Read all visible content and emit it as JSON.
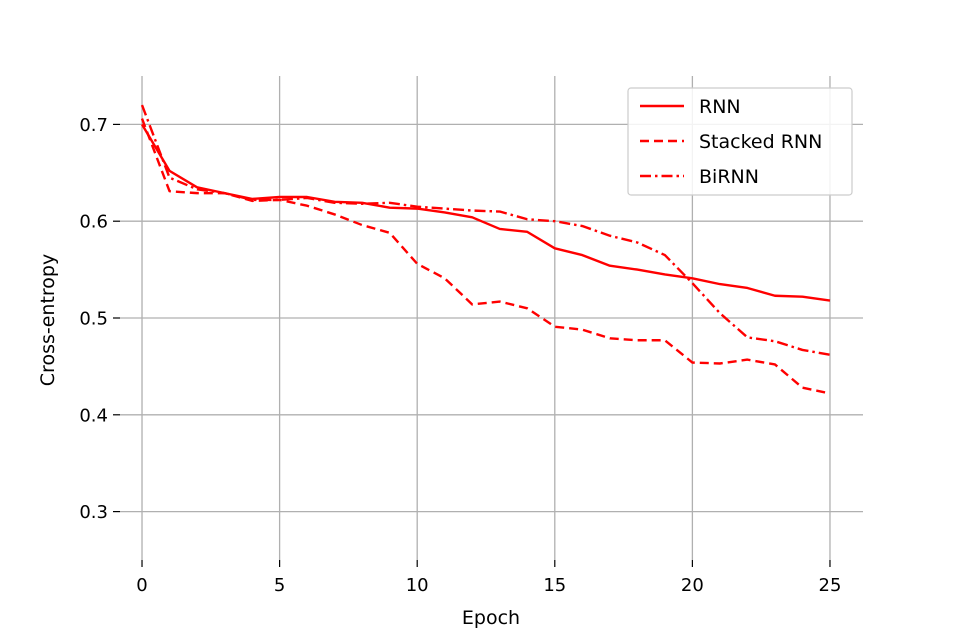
{
  "chart_data": {
    "type": "line",
    "title": "",
    "xlabel": "Epoch",
    "ylabel": "Cross-entropy",
    "xlim": [
      -0.8,
      26.2
    ],
    "ylim": [
      0.25,
      0.75
    ],
    "xticks": [
      0,
      5,
      10,
      15,
      20,
      25
    ],
    "yticks": [
      0.3,
      0.4,
      0.5,
      0.6,
      0.7
    ],
    "grid": true,
    "legend": "top-right",
    "x": [
      0,
      1,
      2,
      3,
      4,
      5,
      6,
      7,
      8,
      9,
      10,
      11,
      12,
      13,
      14,
      15,
      16,
      17,
      18,
      19,
      20,
      21,
      22,
      23,
      24,
      25
    ],
    "series": [
      {
        "name": "RNN",
        "style": "solid",
        "color": "#ff0000",
        "values": [
          0.7,
          0.652,
          0.635,
          0.629,
          0.623,
          0.625,
          0.625,
          0.62,
          0.619,
          0.614,
          0.613,
          0.609,
          0.604,
          0.592,
          0.589,
          0.572,
          0.565,
          0.554,
          0.55,
          0.545,
          0.541,
          0.535,
          0.531,
          0.523,
          0.522,
          0.518
        ]
      },
      {
        "name": "Stacked RNN",
        "style": "dashed",
        "color": "#ff0000",
        "values": [
          0.706,
          0.631,
          0.629,
          0.629,
          0.621,
          0.622,
          0.616,
          0.607,
          0.596,
          0.588,
          0.556,
          0.541,
          0.514,
          0.517,
          0.51,
          0.491,
          0.488,
          0.479,
          0.477,
          0.477,
          0.454,
          0.453,
          0.457,
          0.452,
          0.428,
          0.422
        ]
      },
      {
        "name": "BiRNN",
        "style": "dashdot",
        "color": "#ff0000",
        "values": [
          0.72,
          0.645,
          0.633,
          0.629,
          0.622,
          0.622,
          0.624,
          0.619,
          0.618,
          0.619,
          0.615,
          0.613,
          0.611,
          0.61,
          0.602,
          0.6,
          0.595,
          0.585,
          0.578,
          0.565,
          0.536,
          0.505,
          0.48,
          0.476,
          0.467,
          0.462
        ]
      }
    ]
  }
}
